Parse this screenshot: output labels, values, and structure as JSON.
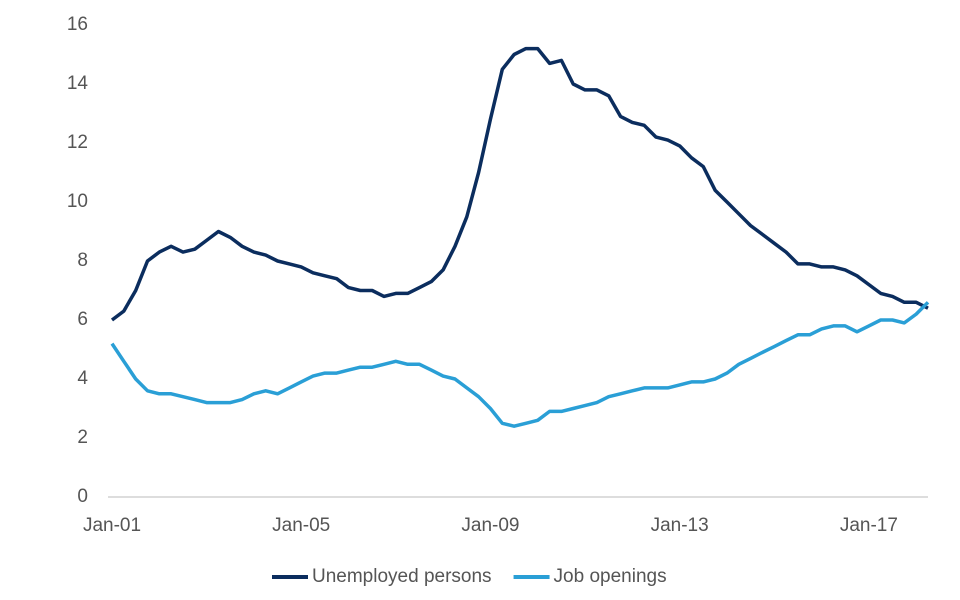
{
  "chart_data": {
    "type": "line",
    "categories": [
      "Jan-01",
      null,
      null,
      null,
      null,
      null,
      null,
      null,
      null,
      null,
      null,
      null,
      null,
      null,
      null,
      null,
      "Jan-05",
      null,
      null,
      null,
      null,
      null,
      null,
      null,
      null,
      null,
      null,
      null,
      null,
      null,
      null,
      null,
      "Jan-09",
      null,
      null,
      null,
      null,
      null,
      null,
      null,
      null,
      null,
      null,
      null,
      null,
      null,
      null,
      null,
      "Jan-13",
      null,
      null,
      null,
      null,
      null,
      null,
      null,
      null,
      null,
      null,
      null,
      null,
      null,
      null,
      null,
      "Jan-17",
      null,
      null,
      null,
      null,
      null
    ],
    "series": [
      {
        "name": "Unemployed persons",
        "color": "#0b2d5e",
        "values": [
          6.0,
          6.3,
          7.0,
          8.0,
          8.3,
          8.5,
          8.3,
          8.4,
          8.7,
          9.0,
          8.8,
          8.5,
          8.3,
          8.2,
          8.0,
          7.9,
          7.8,
          7.6,
          7.5,
          7.4,
          7.1,
          7.0,
          7.0,
          6.8,
          6.9,
          6.9,
          7.1,
          7.3,
          7.7,
          8.5,
          9.5,
          11.0,
          12.8,
          14.5,
          15.0,
          15.2,
          15.2,
          14.7,
          14.8,
          14.0,
          13.8,
          13.8,
          13.6,
          12.9,
          12.7,
          12.6,
          12.2,
          12.1,
          11.9,
          11.5,
          11.2,
          10.4,
          10.0,
          9.6,
          9.2,
          8.9,
          8.6,
          8.3,
          7.9,
          7.9,
          7.8,
          7.8,
          7.7,
          7.5,
          7.2,
          6.9,
          6.8,
          6.6,
          6.6,
          6.4
        ]
      },
      {
        "name": "Job openings",
        "color": "#2a9fd6",
        "values": [
          5.2,
          4.6,
          4.0,
          3.6,
          3.5,
          3.5,
          3.4,
          3.3,
          3.2,
          3.2,
          3.2,
          3.3,
          3.5,
          3.6,
          3.5,
          3.7,
          3.9,
          4.1,
          4.2,
          4.2,
          4.3,
          4.4,
          4.4,
          4.5,
          4.6,
          4.5,
          4.5,
          4.3,
          4.1,
          4.0,
          3.7,
          3.4,
          3.0,
          2.5,
          2.4,
          2.5,
          2.6,
          2.9,
          2.9,
          3.0,
          3.1,
          3.2,
          3.4,
          3.5,
          3.6,
          3.7,
          3.7,
          3.7,
          3.8,
          3.9,
          3.9,
          4.0,
          4.2,
          4.5,
          4.7,
          4.9,
          5.1,
          5.3,
          5.5,
          5.5,
          5.7,
          5.8,
          5.8,
          5.6,
          5.8,
          6.0,
          6.0,
          5.9,
          6.2,
          6.6
        ]
      }
    ],
    "ylim": [
      0,
      16
    ],
    "yticks": [
      0,
      2,
      4,
      6,
      8,
      10,
      12,
      14,
      16
    ],
    "grid": false,
    "legend": "bottom"
  }
}
